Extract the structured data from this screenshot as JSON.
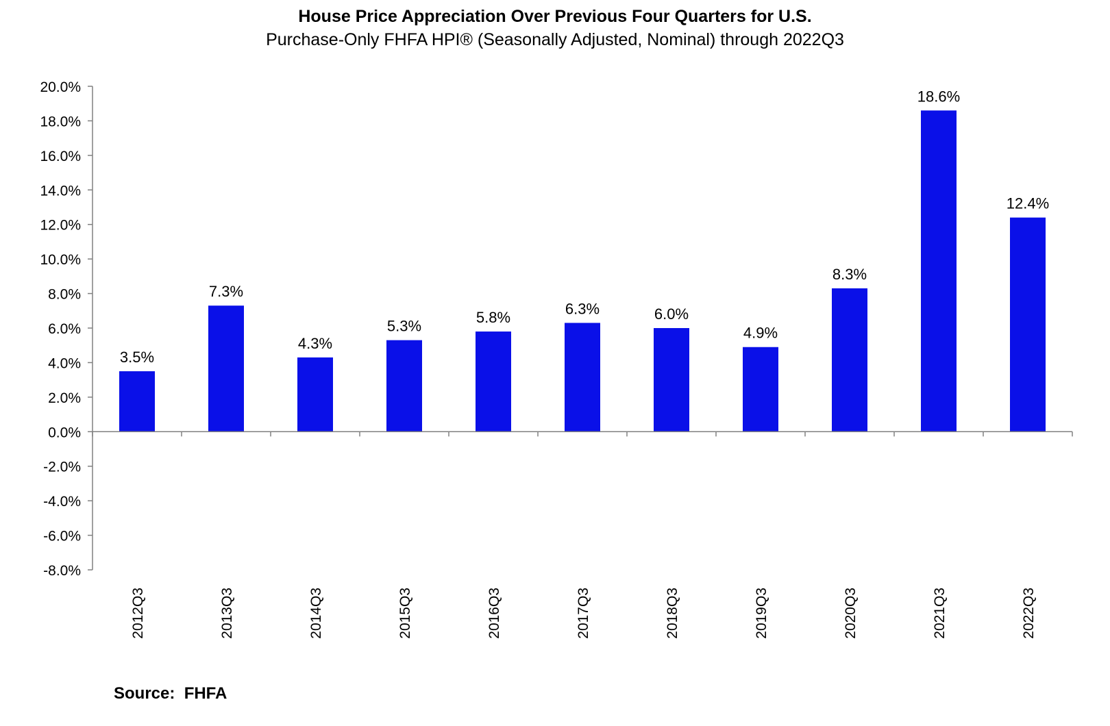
{
  "chart_data": {
    "type": "bar",
    "title": "House Price Appreciation Over Previous Four Quarters for U.S.",
    "subtitle": "Purchase-Only FHFA HPI® (Seasonally Adjusted, Nominal) through 2022Q3",
    "categories": [
      "2012Q3",
      "2013Q3",
      "2014Q3",
      "2015Q3",
      "2016Q3",
      "2017Q3",
      "2018Q3",
      "2019Q3",
      "2020Q3",
      "2021Q3",
      "2022Q3"
    ],
    "values": [
      3.5,
      7.3,
      4.3,
      5.3,
      5.8,
      6.3,
      6.0,
      4.9,
      8.3,
      18.6,
      12.4
    ],
    "data_labels": [
      "3.5%",
      "7.3%",
      "4.3%",
      "5.3%",
      "5.8%",
      "6.3%",
      "6.0%",
      "4.9%",
      "8.3%",
      "18.6%",
      "12.4%"
    ],
    "ylim": [
      -8.0,
      20.0
    ],
    "y_ticks": [
      20.0,
      18.0,
      16.0,
      14.0,
      12.0,
      10.0,
      8.0,
      6.0,
      4.0,
      2.0,
      0.0,
      -2.0,
      -4.0,
      -6.0,
      -8.0
    ],
    "y_tick_labels": [
      "20.0%",
      "18.0%",
      "16.0%",
      "14.0%",
      "12.0%",
      "10.0%",
      "8.0%",
      "6.0%",
      "4.0%",
      "2.0%",
      "0.0%",
      "-2.0%",
      "-4.0%",
      "-6.0%",
      "-8.0%"
    ],
    "xlabel": "",
    "ylabel": "",
    "grid": false,
    "legend": "none",
    "bar_color": "#0A10E8",
    "source": "Source:  FHFA"
  }
}
